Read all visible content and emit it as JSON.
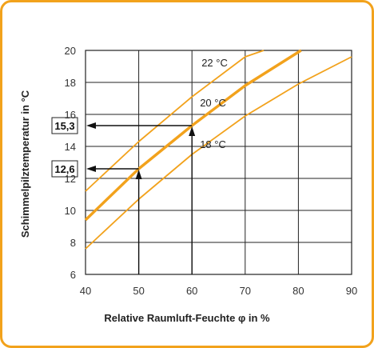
{
  "chart_data": {
    "type": "line",
    "xlabel": "Relative Raumluft-Feuchte φ in %",
    "ylabel": "Schimmelpilztemperatur  in °C",
    "xlim": [
      40,
      90
    ],
    "ylim": [
      6,
      20
    ],
    "x_ticks": [
      40,
      50,
      60,
      70,
      80,
      90
    ],
    "y_ticks": [
      6,
      8,
      10,
      12,
      14,
      16,
      18,
      20
    ],
    "grid": true,
    "series": [
      {
        "name": "22 °C",
        "color": "#f2a21c",
        "x": [
          40,
          50,
          60,
          70,
          73.5
        ],
        "y": [
          11.2,
          14.3,
          17.1,
          19.6,
          20.0
        ]
      },
      {
        "name": "20 °C",
        "color": "#f2a21c",
        "emphasis": true,
        "x": [
          40,
          50,
          60,
          70,
          80.5
        ],
        "y": [
          9.4,
          12.6,
          15.3,
          17.8,
          20.0
        ]
      },
      {
        "name": "18 °C",
        "color": "#f2a21c",
        "x": [
          40,
          50,
          60,
          70,
          80,
          90
        ],
        "y": [
          7.6,
          10.7,
          13.5,
          15.9,
          17.9,
          19.6
        ]
      }
    ],
    "annotations": [
      {
        "label": "15,3",
        "x": 60,
        "y": 15.3
      },
      {
        "label": "12,6",
        "x": 50,
        "y": 12.6
      }
    ]
  }
}
